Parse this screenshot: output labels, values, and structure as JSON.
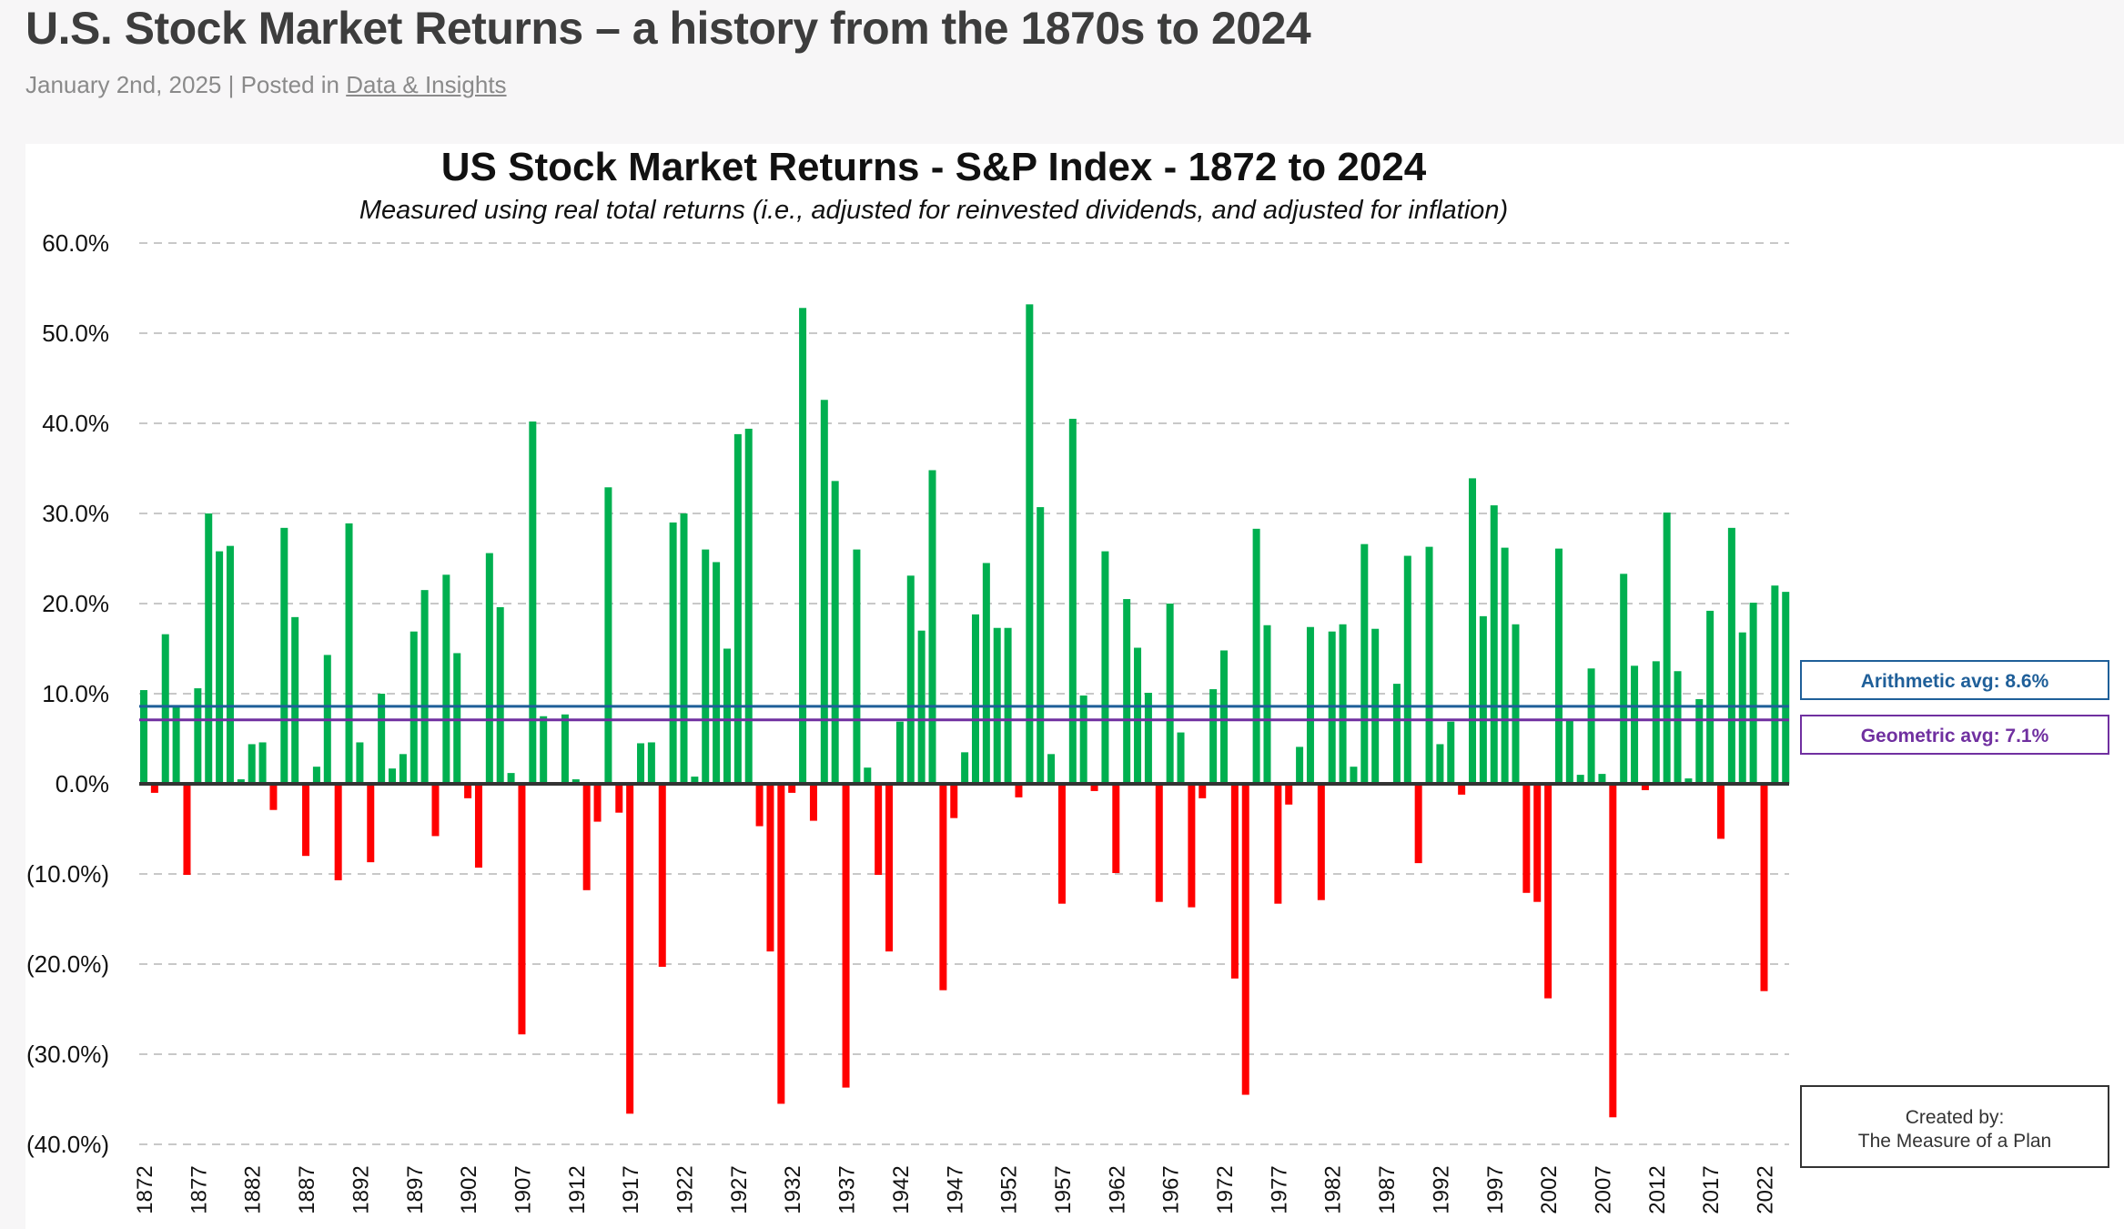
{
  "post": {
    "title": "U.S. Stock Market Returns – a history from the 1870s to 2024",
    "date": "January 2nd, 2025",
    "posted_in": " | Posted in ",
    "category": "Data & Insights"
  },
  "chart_data": {
    "type": "bar",
    "title": "US Stock Market Returns - S&P Index - 1872 to 2024",
    "subtitle": "Measured using real total returns (i.e., adjusted for reinvested dividends, and adjusted for inflation)",
    "ylim": [
      -40,
      60
    ],
    "yticks": [
      60,
      50,
      40,
      30,
      20,
      10,
      0,
      -10,
      -20,
      -30,
      -40
    ],
    "ytick_labels": [
      "60.0%",
      "50.0%",
      "40.0%",
      "30.0%",
      "20.0%",
      "10.0%",
      "0.0%",
      "(10.0%)",
      "(20.0%)",
      "(30.0%)",
      "(40.0%)"
    ],
    "grid": "horizontal dashed",
    "start_year": 1872,
    "xtick_labels": [
      "1872",
      "1877",
      "1882",
      "1887",
      "1892",
      "1897",
      "1902",
      "1907",
      "1912",
      "1917",
      "1922",
      "1927",
      "1932",
      "1937",
      "1942",
      "1947",
      "1952",
      "1957",
      "1962",
      "1967",
      "1972",
      "1977",
      "1982",
      "1987",
      "1992",
      "1997",
      "2002",
      "2007",
      "2012",
      "2017",
      "2022"
    ],
    "values": [
      10.4,
      -1.0,
      16.6,
      8.6,
      -10.1,
      10.6,
      30.0,
      25.8,
      26.4,
      0.5,
      4.4,
      4.6,
      -2.9,
      28.4,
      18.5,
      -8.0,
      1.9,
      14.3,
      -10.7,
      28.9,
      4.6,
      -8.7,
      10.0,
      1.7,
      3.3,
      16.9,
      21.5,
      -5.8,
      23.2,
      14.5,
      -1.6,
      -9.3,
      25.6,
      19.6,
      1.2,
      -27.8,
      40.2,
      7.5,
      0.0,
      7.7,
      0.5,
      -11.8,
      -4.2,
      32.9,
      -3.2,
      -36.6,
      4.5,
      4.6,
      -20.3,
      29.0,
      30.0,
      0.8,
      26.0,
      24.6,
      15.0,
      38.8,
      39.4,
      -4.7,
      -18.6,
      -35.5,
      -1.0,
      52.8,
      -4.1,
      42.6,
      33.6,
      -33.7,
      26.0,
      1.8,
      -10.1,
      -18.6,
      6.9,
      23.1,
      17.0,
      34.8,
      -22.9,
      -3.8,
      3.5,
      18.8,
      24.5,
      17.3,
      17.3,
      -1.5,
      53.2,
      30.7,
      3.3,
      -13.3,
      40.5,
      9.8,
      -0.8,
      25.8,
      -9.9,
      20.5,
      15.1,
      10.1,
      -13.1,
      20.0,
      5.7,
      -13.7,
      -1.6,
      10.5,
      14.8,
      -21.6,
      -34.5,
      28.3,
      17.6,
      -13.3,
      -2.3,
      4.1,
      17.4,
      -12.9,
      16.9,
      17.7,
      1.9,
      26.6,
      17.2,
      0.0,
      11.1,
      25.3,
      -8.8,
      26.3,
      4.4,
      6.9,
      -1.2,
      33.9,
      18.6,
      30.9,
      26.2,
      17.7,
      -12.1,
      -13.1,
      -23.8,
      26.1,
      7.0,
      1.0,
      12.8,
      1.1,
      -37.0,
      23.3,
      13.1,
      -0.7,
      13.6,
      30.1,
      12.5,
      0.6,
      9.4,
      19.2,
      -6.1,
      28.4,
      16.8,
      20.1,
      -23.0,
      22.0,
      21.3
    ],
    "colors": {
      "positive": "#00b050",
      "negative": "#ff0000"
    },
    "reference_lines": [
      {
        "label": "Arithmetic avg: 8.6%",
        "value": 8.6,
        "color": "#1f5f99"
      },
      {
        "label": "Geometric avg: 7.1%",
        "value": 7.1,
        "color": "#7030a0"
      }
    ],
    "credit": {
      "line1": "Created by:",
      "line2": "The Measure of a Plan"
    }
  }
}
